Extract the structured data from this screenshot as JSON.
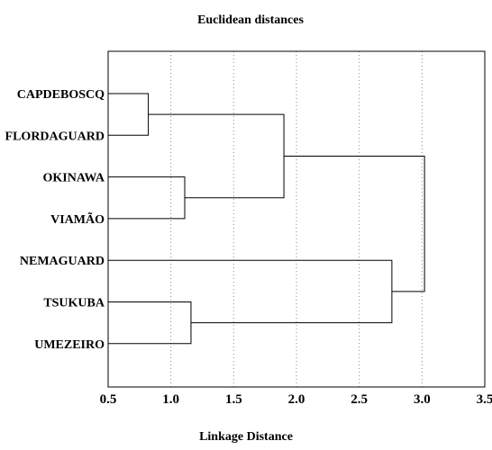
{
  "chart_data": {
    "type": "dendrogram",
    "title": "Euclidean distances",
    "xlabel": "Linkage Distance",
    "ylabel": "",
    "xlim": [
      0.5,
      3.5
    ],
    "x_ticks": [
      "0.5",
      "1.0",
      "1.5",
      "2.0",
      "2.5",
      "3.0",
      "3.5"
    ],
    "x_tick_values": [
      0.5,
      1.0,
      1.5,
      2.0,
      2.5,
      3.0,
      3.5
    ],
    "grid": "vertical dotted",
    "leaves": [
      "CAPDEBOSCQ",
      "FLORDAGUARD",
      "OKINAWA",
      "VIAMÃO",
      "NEMAGUARD",
      "TSUKUBA",
      "UMEZEIRO"
    ],
    "merges": [
      {
        "a": "CAPDEBOSCQ",
        "b": "FLORDAGUARD",
        "distance": 0.82
      },
      {
        "a": "OKINAWA",
        "b": "VIAMÃO",
        "distance": 1.11
      },
      {
        "a": "TSUKUBA",
        "b": "UMEZEIRO",
        "distance": 1.16
      },
      {
        "a": "CAPDEBOSCQ+FLORDAGUARD",
        "b": "OKINAWA+VIAMÃO",
        "distance": 1.9
      },
      {
        "a": "NEMAGUARD",
        "b": "TSUKUBA+UMEZEIRO",
        "distance": 2.76
      },
      {
        "a": "CAPDEBOSCQ+FLORDAGUARD+OKINAWA+VIAMÃO",
        "b": "NEMAGUARD+TSUKUBA+UMEZEIRO",
        "distance": 3.02
      }
    ]
  }
}
